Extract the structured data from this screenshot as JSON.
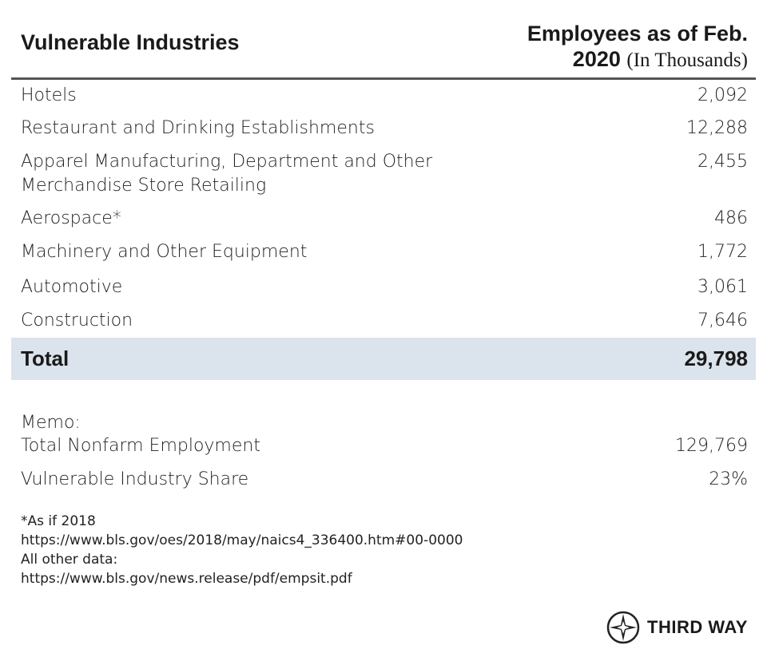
{
  "table": {
    "header": {
      "label": "Vulnerable Industries",
      "value": "Employees as of Feb. 2020",
      "unit": "(In Thousands)"
    },
    "rows": [
      [
        "Hotels",
        "2,092"
      ],
      [
        "Restaurant and Drinking Establishments",
        "12,288"
      ],
      [
        "Apparel Manufacturing, Department and Other Merchandise Store Retailing",
        "2,455"
      ],
      [
        "Aerospace*",
        "486"
      ],
      [
        "Machinery and Other Equipment",
        "1,772"
      ],
      [
        "Automotive",
        "3,061"
      ],
      [
        "Construction",
        "7,646"
      ]
    ],
    "total": [
      "Total",
      "29,798"
    ]
  },
  "memo": {
    "title": "Memo:",
    "rows": [
      [
        "Total Nonfarm Employment",
        "129,769"
      ],
      [
        "Vulnerable Industry Share",
        "23%"
      ]
    ]
  },
  "footnotes": [
    "*As if 2018",
    "https://www.bls.gov/oes/2018/may/naics4_336400.htm#00-0000",
    "All other data:",
    "https://www.bls.gov/news.release/pdf/empsit.pdf"
  ],
  "brand": "THIRD WAY"
}
